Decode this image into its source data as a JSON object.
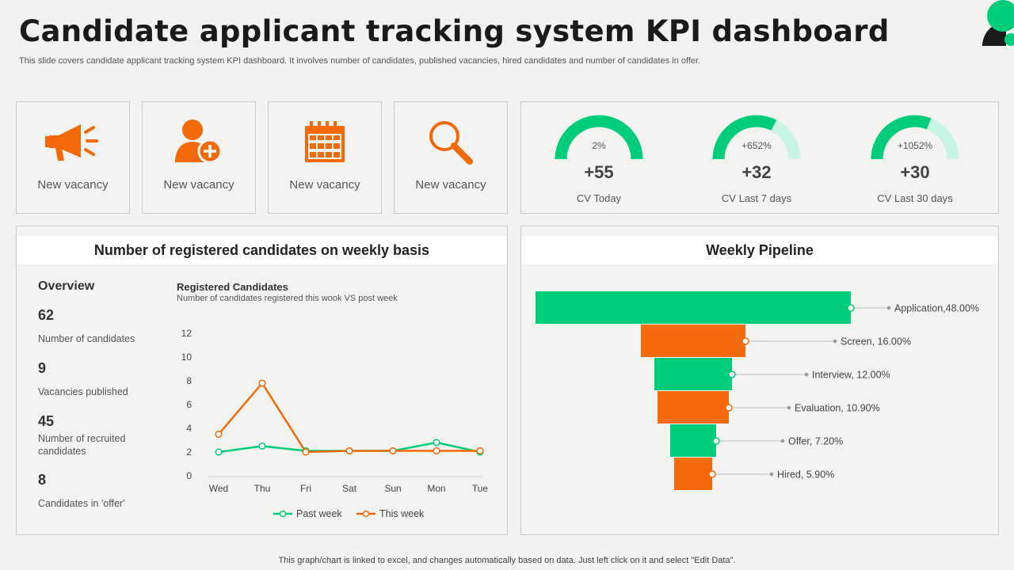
{
  "header": {
    "title": "Candidate applicant tracking system KPI dashboard",
    "subtitle": "This slide covers candidate applicant tracking system KPI dashboard. It involves number of candidates, published vacancies, hired candidates and number  of candidates in offer."
  },
  "icon_cards": [
    {
      "icon": "megaphone-icon",
      "label": "New vacancy"
    },
    {
      "icon": "add-user-icon",
      "label": "New vacancy"
    },
    {
      "icon": "calendar-icon",
      "label": "New vacancy"
    },
    {
      "icon": "magnifier-icon",
      "label": "New vacancy"
    }
  ],
  "kpis": [
    {
      "percent_label": "2%",
      "value": "+55",
      "caption": "CV Today",
      "fill": 1.0
    },
    {
      "percent_label": "+652%",
      "value": "+32",
      "caption": "CV Last 7 days",
      "fill": 0.65
    },
    {
      "percent_label": "+1052%",
      "value": "+30",
      "caption": "CV Last 30 days",
      "fill": 0.62
    }
  ],
  "weekly_panel": {
    "heading": "Number of registered candidates on weekly basis",
    "overview_title": "Overview",
    "stats": [
      {
        "value": "62",
        "label": "Number  of candidates"
      },
      {
        "value": "9",
        "label": "Vacancies published"
      },
      {
        "value": "45",
        "label": "Number of recruited candidates"
      },
      {
        "value": "8",
        "label": "Candidates  in 'offer'"
      }
    ]
  },
  "pipeline_panel": {
    "heading": "Weekly Pipeline"
  },
  "footer": "This graph/chart is linked to excel,  and changes automatically based on data. Just left click on it and select \"Edit Data\".",
  "colors": {
    "green": "#00cc7a",
    "light_green": "#c8f5e4",
    "orange": "#f26a0a",
    "dark": "#1a1a1a"
  },
  "chart_data": [
    {
      "type": "line",
      "title": "Registered Candidates",
      "subtitle": "Number of candidates registered this wook VS post week",
      "categories": [
        "Wed",
        "Thu",
        "Fri",
        "Sat",
        "Sun",
        "Mon",
        "Tue"
      ],
      "ylim": [
        0,
        12
      ],
      "yticks": [
        0,
        2,
        4,
        6,
        8,
        10,
        12
      ],
      "series": [
        {
          "name": "Past week",
          "color": "#00cc7a",
          "values": [
            2,
            2.5,
            2.1,
            2.1,
            2.1,
            2.8,
            2
          ]
        },
        {
          "name": "This week",
          "color": "#f26a0a",
          "values": [
            3.5,
            7.8,
            2,
            2.1,
            2.1,
            2.1,
            2.1
          ]
        }
      ],
      "legend": "bottom"
    },
    {
      "type": "bar",
      "orientation": "funnel",
      "title": "Weekly Pipeline",
      "categories": [
        "Application",
        "Screen",
        "Interview",
        "Evaluation",
        "Offer",
        "Hired"
      ],
      "values": [
        48.0,
        16.0,
        12.0,
        10.9,
        7.2,
        5.9
      ],
      "labels": [
        "Application,48.00%",
        "Screen, 16.00%",
        "Interview,  12.00%",
        "Evaluation,  10.90%",
        "Offer,  7.20%",
        "Hired,  5.90%"
      ],
      "colors": [
        "#00cc7a",
        "#f26a0a",
        "#00cc7a",
        "#f26a0a",
        "#00cc7a",
        "#f26a0a"
      ]
    }
  ]
}
